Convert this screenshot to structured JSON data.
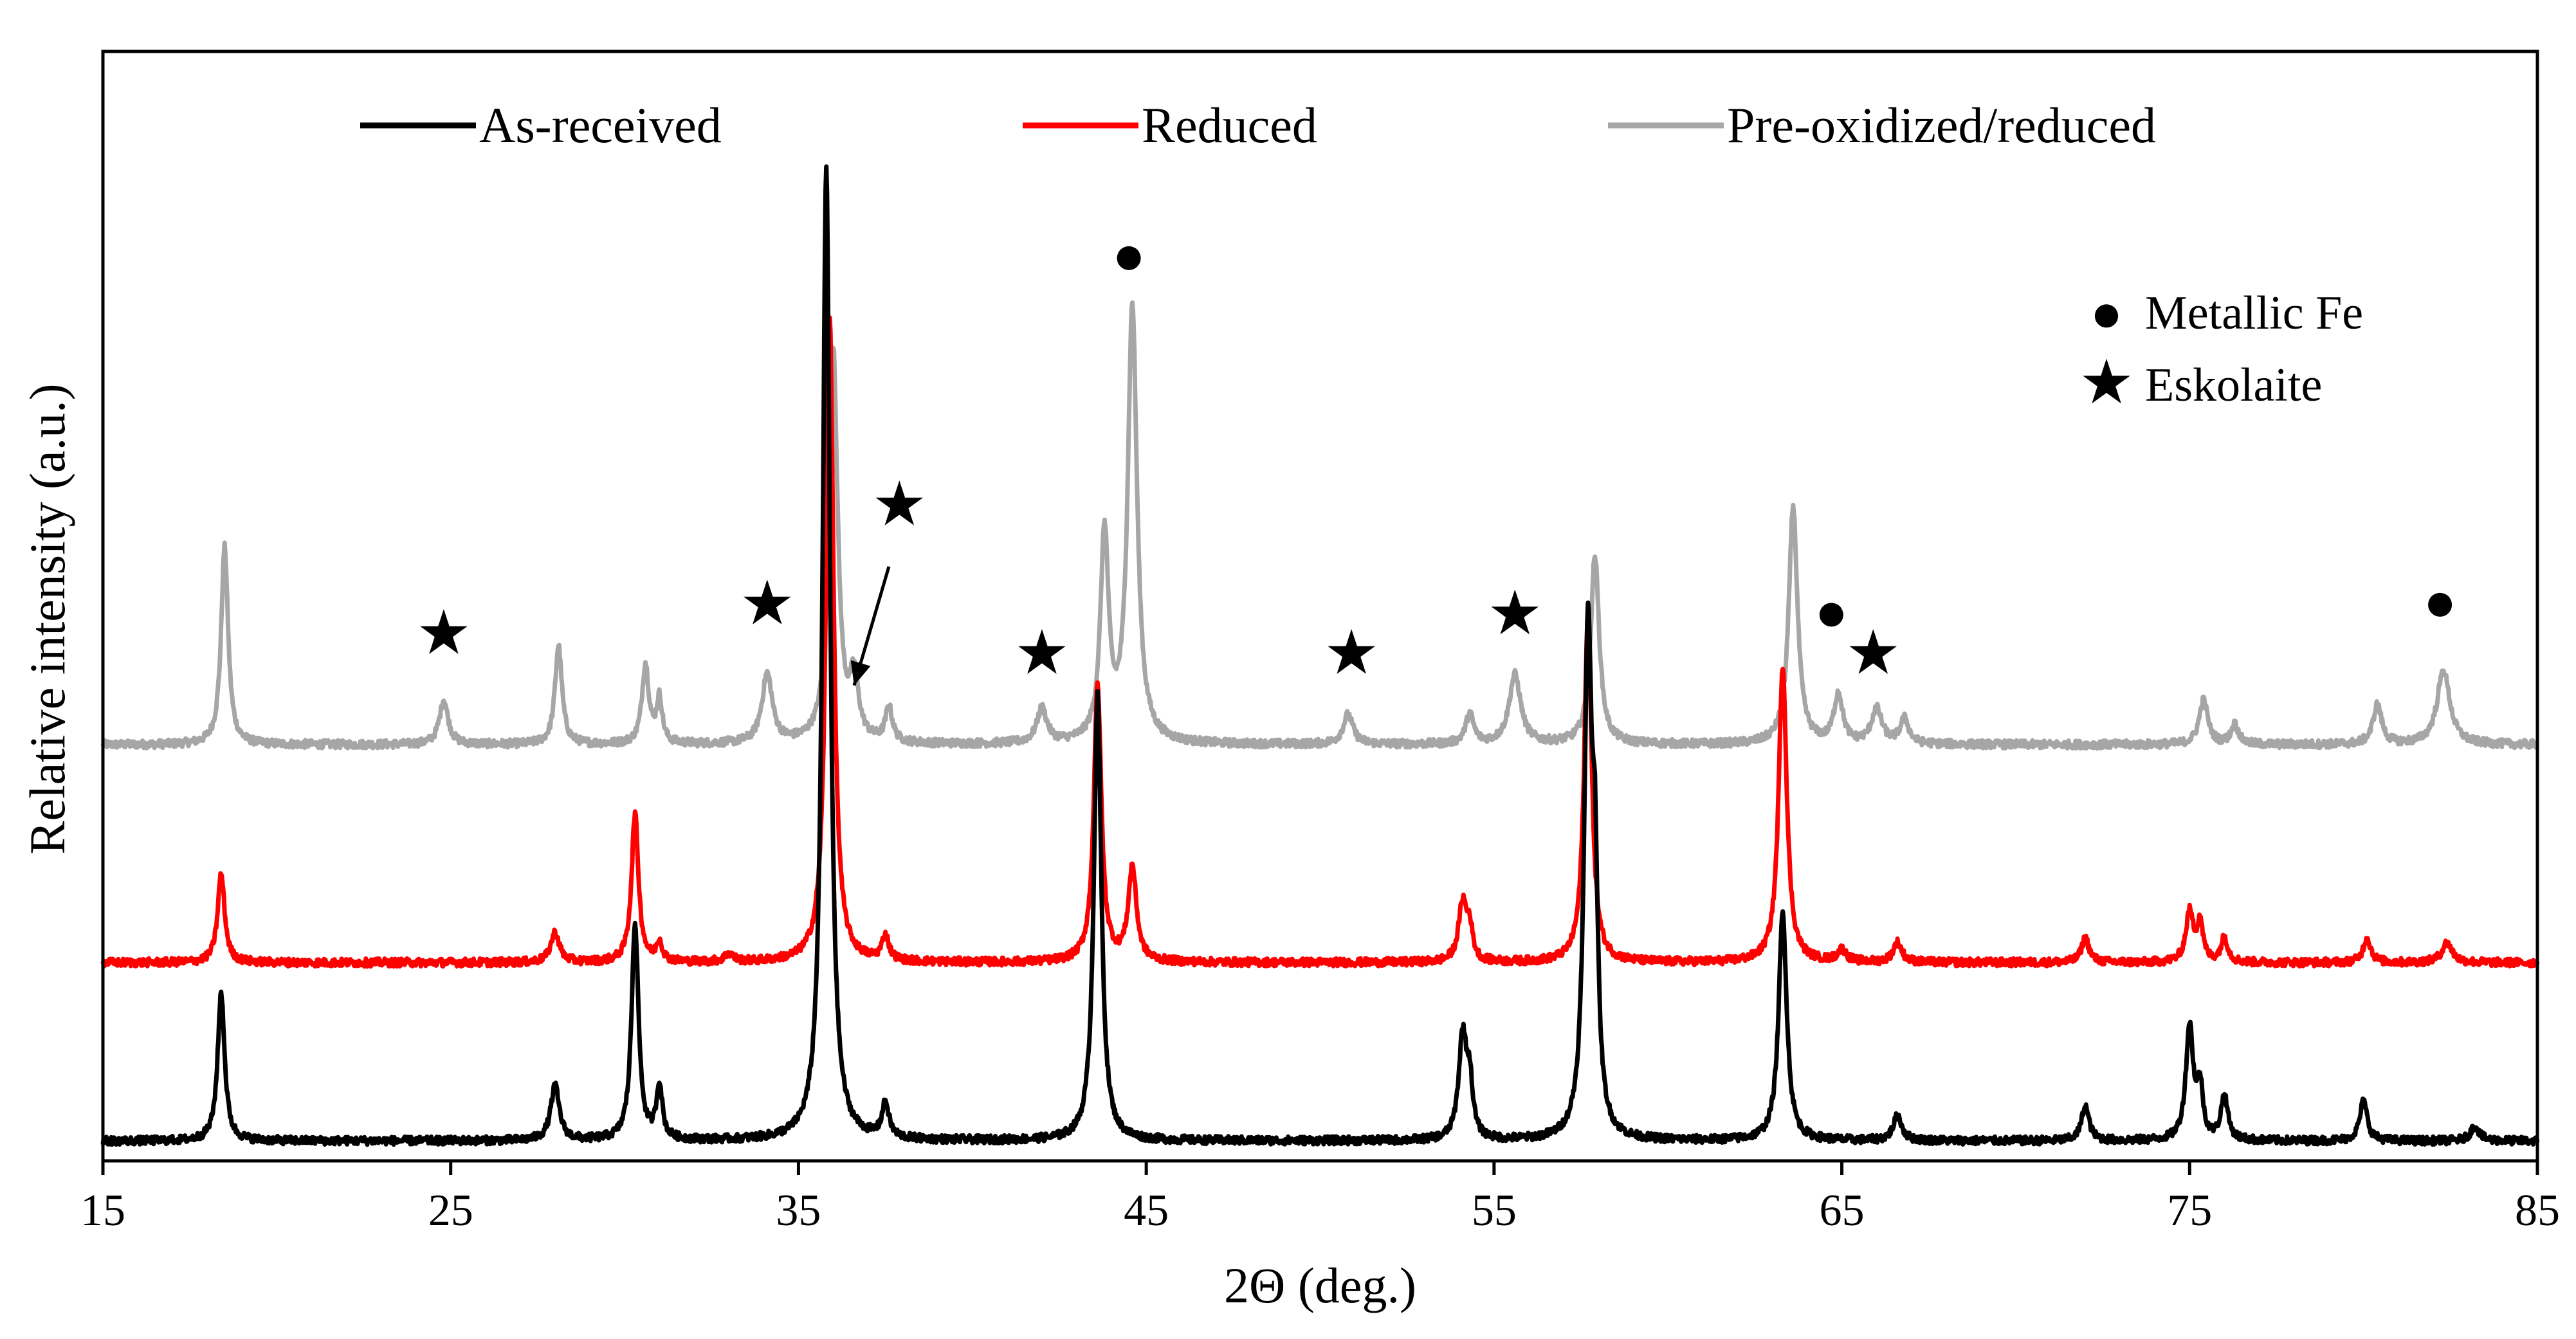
{
  "chart_data": {
    "type": "line",
    "title": "",
    "xlabel": "2Θ (deg.)",
    "ylabel": "Relative intensity (a.u.)",
    "xlim": [
      15,
      85
    ],
    "xticks": [
      15,
      25,
      35,
      45,
      55,
      65,
      75,
      85
    ],
    "ylim": [
      0,
      1.12
    ],
    "yticks_shown": false,
    "grid": false,
    "legend_position": "top",
    "colors": {
      "as_received": "#000000",
      "reduced": "#ff0000",
      "pre_oxidized": "#a6a6a6"
    },
    "series": [
      {
        "name": "As-received",
        "key": "as_received",
        "baseline": 0.02,
        "noise": 0.004,
        "peaks": [
          [
            18.4,
            0.15,
            0.12
          ],
          [
            28.0,
            0.055,
            0.15
          ],
          [
            30.3,
            0.22,
            0.12
          ],
          [
            31.0,
            0.055,
            0.1
          ],
          [
            35.8,
            0.98,
            0.13
          ],
          [
            37.5,
            0.035,
            0.12
          ],
          [
            43.6,
            0.45,
            0.13
          ],
          [
            54.1,
            0.105,
            0.14
          ],
          [
            54.3,
            0.05,
            0.1
          ],
          [
            57.7,
            0.5,
            0.13
          ],
          [
            57.9,
            0.22,
            0.1
          ],
          [
            63.3,
            0.23,
            0.14
          ],
          [
            66.6,
            0.025,
            0.15
          ],
          [
            72.0,
            0.035,
            0.13
          ],
          [
            75.0,
            0.115,
            0.13
          ],
          [
            75.3,
            0.05,
            0.1
          ],
          [
            76.0,
            0.045,
            0.12
          ],
          [
            80.0,
            0.04,
            0.13
          ],
          [
            83.2,
            0.015,
            0.15
          ]
        ]
      },
      {
        "name": "Reduced",
        "key": "reduced",
        "baseline": 0.2,
        "noise": 0.004,
        "peaks": [
          [
            18.4,
            0.09,
            0.12
          ],
          [
            28.0,
            0.03,
            0.15
          ],
          [
            30.3,
            0.15,
            0.12
          ],
          [
            31.0,
            0.02,
            0.1
          ],
          [
            33.0,
            0.008,
            0.15
          ],
          [
            35.9,
            0.65,
            0.13
          ],
          [
            37.5,
            0.025,
            0.12
          ],
          [
            43.6,
            0.28,
            0.13
          ],
          [
            44.6,
            0.095,
            0.14
          ],
          [
            54.1,
            0.06,
            0.14
          ],
          [
            54.3,
            0.03,
            0.1
          ],
          [
            57.7,
            0.35,
            0.13
          ],
          [
            63.3,
            0.3,
            0.14
          ],
          [
            65.0,
            0.012,
            0.15
          ],
          [
            66.6,
            0.02,
            0.15
          ],
          [
            72.0,
            0.025,
            0.13
          ],
          [
            75.0,
            0.05,
            0.13
          ],
          [
            75.3,
            0.04,
            0.1
          ],
          [
            76.0,
            0.025,
            0.12
          ],
          [
            80.1,
            0.025,
            0.13
          ],
          [
            82.4,
            0.02,
            0.18
          ]
        ]
      },
      {
        "name": "Pre-oxidized/reduced",
        "key": "pre_oxidized",
        "baseline": 0.42,
        "noise": 0.004,
        "peaks": [
          [
            18.5,
            0.2,
            0.12
          ],
          [
            24.8,
            0.045,
            0.15
          ],
          [
            28.1,
            0.1,
            0.12
          ],
          [
            30.6,
            0.08,
            0.12
          ],
          [
            31.0,
            0.045,
            0.1
          ],
          [
            34.1,
            0.07,
            0.18
          ],
          [
            36.0,
            0.4,
            0.15
          ],
          [
            36.6,
            0.06,
            0.15
          ],
          [
            37.6,
            0.035,
            0.12
          ],
          [
            42.0,
            0.035,
            0.17
          ],
          [
            43.8,
            0.21,
            0.14
          ],
          [
            44.6,
            0.44,
            0.16
          ],
          [
            50.8,
            0.03,
            0.17
          ],
          [
            54.3,
            0.03,
            0.14
          ],
          [
            55.6,
            0.07,
            0.2
          ],
          [
            57.9,
            0.19,
            0.15
          ],
          [
            63.6,
            0.24,
            0.15
          ],
          [
            64.9,
            0.05,
            0.15
          ],
          [
            66.0,
            0.035,
            0.18
          ],
          [
            66.8,
            0.025,
            0.15
          ],
          [
            75.4,
            0.045,
            0.15
          ],
          [
            76.3,
            0.02,
            0.13
          ],
          [
            80.4,
            0.04,
            0.15
          ],
          [
            82.3,
            0.075,
            0.22
          ]
        ]
      }
    ],
    "annotations": [
      {
        "symbol": "★",
        "meaning": "Eskolaite",
        "x": 24.8,
        "y": 0.53
      },
      {
        "symbol": "★",
        "meaning": "Eskolaite",
        "x": 34.1,
        "y": 0.56
      },
      {
        "symbol": "★",
        "meaning": "Eskolaite",
        "x": 37.9,
        "y": 0.66
      },
      {
        "symbol": "★",
        "meaning": "Eskolaite",
        "x": 42.0,
        "y": 0.51
      },
      {
        "symbol": "★",
        "meaning": "Eskolaite",
        "x": 50.9,
        "y": 0.51
      },
      {
        "symbol": "★",
        "meaning": "Eskolaite",
        "x": 55.6,
        "y": 0.55
      },
      {
        "symbol": "★",
        "meaning": "Eskolaite",
        "x": 65.9,
        "y": 0.51
      },
      {
        "symbol": "●",
        "meaning": "Metallic Fe",
        "x": 44.5,
        "y": 0.91
      },
      {
        "symbol": "●",
        "meaning": "Metallic Fe",
        "x": 64.7,
        "y": 0.55
      },
      {
        "symbol": "●",
        "meaning": "Metallic Fe",
        "x": 82.2,
        "y": 0.56
      }
    ],
    "arrow": {
      "from": [
        37.6,
        0.6
      ],
      "to": [
        36.6,
        0.48
      ]
    },
    "marker_legend": [
      {
        "symbol": "●",
        "label": "Metallic Fe"
      },
      {
        "symbol": "★",
        "label": "Eskolaite"
      }
    ]
  }
}
